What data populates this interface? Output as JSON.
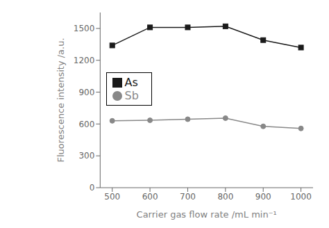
{
  "chart_data": {
    "type": "line",
    "x": [
      500,
      600,
      700,
      800,
      900,
      1000
    ],
    "series": [
      {
        "name": "As",
        "color": "#1a1a1a",
        "marker": "square",
        "values": [
          1340,
          1510,
          1510,
          1520,
          1390,
          1320
        ]
      },
      {
        "name": "Sb",
        "color": "#888888",
        "marker": "circle",
        "values": [
          630,
          635,
          645,
          655,
          578,
          558
        ]
      }
    ],
    "xlabel": "Carrier gas flow rate /mL min⁻¹",
    "ylabel": "Fluorescence intensity /a.u.",
    "xlim": [
      468,
      1032
    ],
    "ylim": [
      0,
      1650
    ],
    "xticks": [
      500,
      600,
      700,
      800,
      900,
      1000
    ],
    "yticks": [
      0,
      300,
      600,
      900,
      1200,
      1500
    ],
    "legend": "upper left",
    "grid": false
  }
}
